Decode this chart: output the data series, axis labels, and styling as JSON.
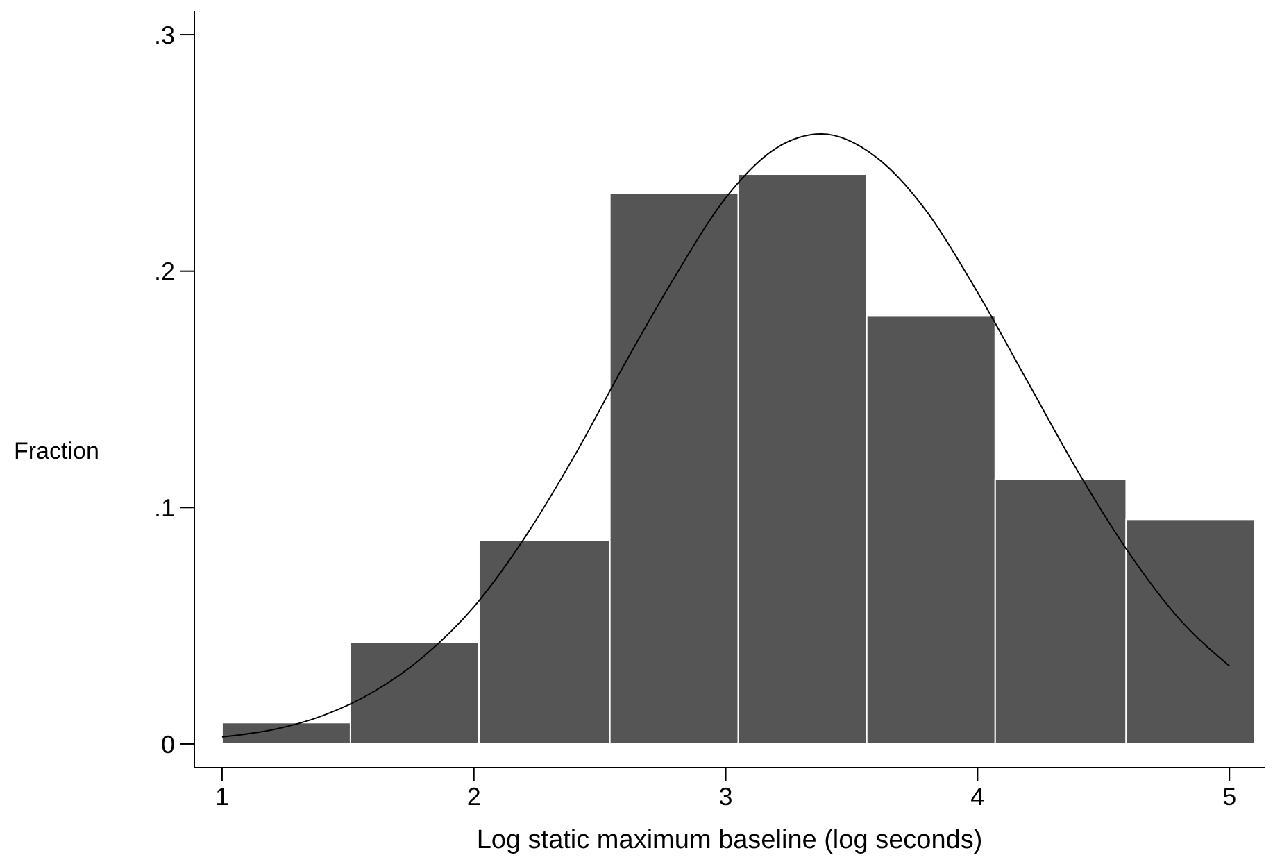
{
  "chart_data": {
    "type": "histogram",
    "xlabel": "Log static maximum baseline (log seconds)",
    "ylabel": "Fraction",
    "bins": [
      1.0,
      1.51,
      2.02,
      2.54,
      3.05,
      3.56,
      4.07,
      4.59,
      5.1
    ],
    "values": [
      0.009,
      0.043,
      0.086,
      0.233,
      0.241,
      0.181,
      0.112,
      0.095
    ],
    "color": "#555555",
    "series": [
      {
        "type": "line",
        "color": "#000000",
        "x": [
          1.0,
          1.2,
          1.4,
          1.6,
          1.8,
          2.0,
          2.2,
          2.4,
          2.6,
          2.8,
          3.0,
          3.2,
          3.38,
          3.6,
          3.8,
          4.0,
          4.2,
          4.4,
          4.6,
          4.8,
          5.0
        ],
        "values": [
          0.003,
          0.006,
          0.012,
          0.022,
          0.037,
          0.058,
          0.087,
          0.122,
          0.161,
          0.198,
          0.231,
          0.252,
          0.258,
          0.248,
          0.225,
          0.191,
          0.153,
          0.115,
          0.081,
          0.053,
          0.033
        ]
      }
    ],
    "xlim": [
      0.89,
      5.14
    ],
    "xticks": [
      1,
      2,
      3,
      4,
      5
    ],
    "ylim": [
      -0.01,
      0.31
    ],
    "yticks": [
      0,
      {
        "value": 0.1,
        "label": ".1"
      },
      {
        "value": 0.2,
        "label": ".2"
      },
      {
        "value": 0.3,
        "label": ".3"
      }
    ],
    "grid": false
  }
}
